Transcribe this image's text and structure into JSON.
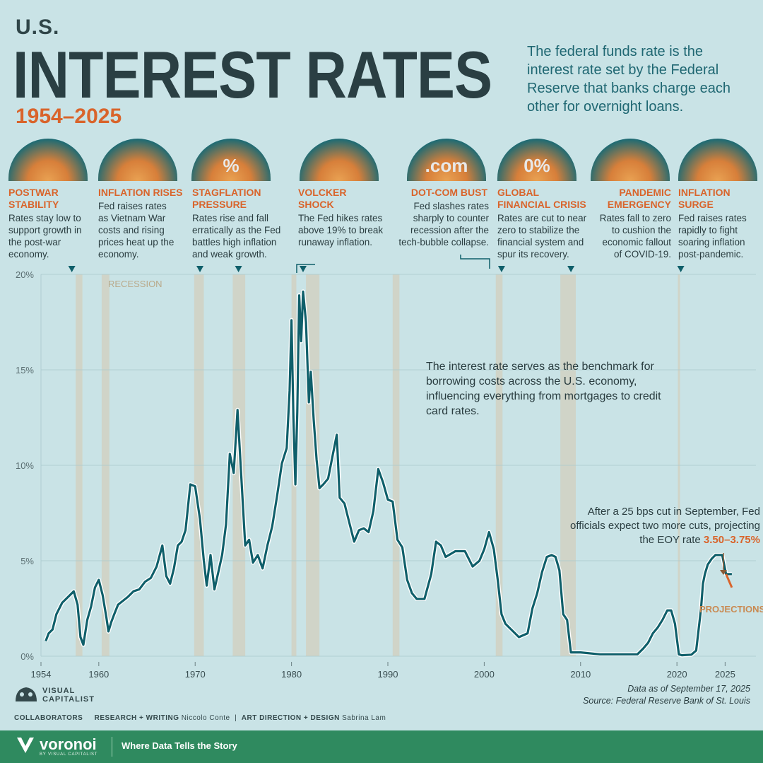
{
  "header": {
    "superscript": "U.S.",
    "title": "INTEREST RATES",
    "years": "1954–2025",
    "intro": "The federal funds rate is the interest rate set by the Federal Reserve that banks charge each other for overnight loans."
  },
  "events": [
    {
      "title": "POSTWAR\nSTABILITY",
      "desc": "Rates stay low to support growth in the post-war economy.",
      "icon": "stacked-coins-icon",
      "icon_glyph": ""
    },
    {
      "title": "INFLATION RISES",
      "desc": "Fed raises rates as Vietnam War costs and rising prices heat up the economy.",
      "icon": "tank-icon",
      "icon_glyph": ""
    },
    {
      "title": "STAGFLATION\nPRESSURE",
      "desc": "Rates rise and fall erratically as the Fed battles high inflation and weak growth.",
      "icon": "percent-dice-icon",
      "icon_glyph": "%"
    },
    {
      "title": "VOLCKER\nSHOCK",
      "desc": "The Fed hikes rates above 19% to break runaway inflation.",
      "icon": "portrait-icon",
      "icon_glyph": ""
    },
    {
      "title": "DOT-COM BUST",
      "desc": "Fed slashes rates sharply to counter recession after the tech-bubble collapse.",
      "icon": "dotcom-ball-icon",
      "icon_glyph": ".com"
    },
    {
      "title": "GLOBAL\nFINANCIAL CRISIS",
      "desc": "Rates are cut to near zero to stabilize the financial system and spur its recovery.",
      "icon": "zero-percent-blocks-icon",
      "icon_glyph": "0%"
    },
    {
      "title": "PANDEMIC\nEMERGENCY",
      "desc": "Rates fall to zero to cushion the economic fallout of COVID-19.",
      "icon": "masked-franklin-icon",
      "icon_glyph": ""
    },
    {
      "title": "INFLATION\nSURGE",
      "desc": "Fed raises rates rapidly to fight soaring inflation post-pandemic.",
      "icon": "rising-coins-icon",
      "icon_glyph": ""
    }
  ],
  "annotations": {
    "benchmark": "The interest rate serves as the benchmark for borrowing costs across the U.S. economy, influencing everything from mortgages to credit card rates.",
    "projection_text": "After a 25 bps cut in September, Fed officials expect two more cuts, projecting the EOY rate",
    "projection_value": "3.50–3.75%",
    "projections_label": "PROJECTIONS",
    "recession_label": "RECESSION"
  },
  "footer": {
    "logo_line1": "VISUAL",
    "logo_line2": "CAPITALIST",
    "data_as_of": "Data as of September 17, 2025",
    "source": "Source: Federal Reserve Bank of St. Louis",
    "collaborators_label": "COLLABORATORS",
    "research_label": "RESEARCH + WRITING",
    "research_name": "Niccolo Conte",
    "design_label": "ART DIRECTION + DESIGN",
    "design_name": "Sabrina Lam",
    "brand": "voronoi",
    "brand_sub": "BY VISUAL CAPITALIST",
    "tagline": "Where Data Tells the Story"
  },
  "colors": {
    "background": "#c9e3e6",
    "line": "#0f5f6a",
    "accent": "#d9642b",
    "recession": "#d2cfbe",
    "footer": "#2f8a5f"
  },
  "chart_data": {
    "type": "line",
    "title": "",
    "xlabel": "",
    "ylabel": "",
    "xlim": [
      1954,
      2026
    ],
    "ylim": [
      0,
      20
    ],
    "yticks": [
      "0%",
      "5%",
      "10%",
      "15%",
      "20%"
    ],
    "ytick_values": [
      0,
      5,
      10,
      15,
      20
    ],
    "xticks": [
      "1954",
      "1960",
      "1970",
      "1980",
      "1990",
      "2000",
      "2010",
      "2020",
      "2025"
    ],
    "xtick_values": [
      1954,
      1960,
      1970,
      1980,
      1990,
      2000,
      2010,
      2020,
      2025
    ],
    "grid": true,
    "series": [
      {
        "name": "",
        "x": [
          1954.5,
          1954.8,
          1955.2,
          1955.6,
          1956.2,
          1956.8,
          1957.4,
          1957.8,
          1958.1,
          1958.4,
          1958.8,
          1959.2,
          1959.6,
          1960.0,
          1960.4,
          1960.8,
          1961.0,
          1961.3,
          1961.6,
          1962.0,
          1962.5,
          1963.0,
          1963.6,
          1964.2,
          1964.8,
          1965.4,
          1966.0,
          1966.6,
          1967.0,
          1967.4,
          1967.8,
          1968.2,
          1968.6,
          1969.0,
          1969.5,
          1970.0,
          1970.5,
          1970.9,
          1971.2,
          1971.6,
          1972.0,
          1972.4,
          1972.8,
          1973.2,
          1973.6,
          1974.0,
          1974.4,
          1974.8,
          1975.2,
          1975.6,
          1976.0,
          1976.5,
          1977.0,
          1977.5,
          1978.0,
          1978.5,
          1979.0,
          1979.5,
          1979.8,
          1980.0,
          1980.2,
          1980.4,
          1980.6,
          1980.8,
          1981.0,
          1981.2,
          1981.5,
          1981.8,
          1982.0,
          1982.3,
          1982.6,
          1982.9,
          1983.3,
          1983.8,
          1984.3,
          1984.7,
          1985.0,
          1985.5,
          1986.0,
          1986.5,
          1987.0,
          1987.5,
          1988.0,
          1988.5,
          1989.0,
          1989.5,
          1990.0,
          1990.5,
          1991.0,
          1991.5,
          1992.0,
          1992.5,
          1993.0,
          1993.8,
          1994.5,
          1995.0,
          1995.5,
          1996.0,
          1997.0,
          1998.0,
          1998.8,
          1999.5,
          2000.0,
          2000.5,
          2001.0,
          2001.4,
          2001.8,
          2002.2,
          2003.0,
          2003.6,
          2004.5,
          2005.0,
          2005.5,
          2006.0,
          2006.5,
          2007.0,
          2007.4,
          2007.8,
          2008.2,
          2008.6,
          2009.0,
          2010.0,
          2012.0,
          2014.0,
          2015.9,
          2016.5,
          2017.0,
          2017.5,
          2018.0,
          2018.5,
          2019.0,
          2019.4,
          2019.8,
          2020.2,
          2020.5,
          2021.5,
          2022.0,
          2022.3,
          2022.5,
          2022.7,
          2022.9,
          2023.2,
          2023.6,
          2024.0,
          2024.5,
          2024.7,
          2024.9,
          2025.1,
          2025.7
        ],
        "values": [
          0.8,
          1.2,
          1.4,
          2.2,
          2.8,
          3.1,
          3.4,
          2.7,
          1.0,
          0.6,
          1.9,
          2.6,
          3.6,
          4.0,
          3.2,
          2.0,
          1.3,
          1.8,
          2.2,
          2.7,
          2.9,
          3.1,
          3.4,
          3.5,
          3.9,
          4.1,
          4.7,
          5.8,
          4.2,
          3.8,
          4.6,
          5.8,
          6.0,
          6.6,
          9.0,
          8.9,
          7.2,
          5.0,
          3.7,
          5.3,
          3.5,
          4.4,
          5.3,
          6.9,
          10.6,
          9.6,
          12.9,
          9.3,
          5.8,
          6.1,
          4.9,
          5.3,
          4.6,
          5.8,
          6.8,
          8.4,
          10.1,
          10.9,
          13.9,
          17.6,
          12.5,
          9.0,
          12.8,
          18.9,
          16.5,
          19.1,
          17.5,
          13.3,
          14.9,
          12.4,
          10.3,
          8.8,
          9.0,
          9.3,
          10.6,
          11.6,
          8.3,
          8.0,
          7.0,
          6.0,
          6.6,
          6.7,
          6.5,
          7.6,
          9.8,
          9.1,
          8.2,
          8.1,
          6.1,
          5.7,
          4.0,
          3.3,
          3.0,
          3.0,
          4.3,
          6.0,
          5.8,
          5.2,
          5.5,
          5.5,
          4.7,
          5.0,
          5.6,
          6.5,
          5.6,
          4.0,
          2.2,
          1.7,
          1.3,
          1.0,
          1.2,
          2.5,
          3.3,
          4.4,
          5.2,
          5.3,
          5.2,
          4.5,
          2.2,
          1.9,
          0.2,
          0.2,
          0.1,
          0.1,
          0.1,
          0.4,
          0.7,
          1.2,
          1.5,
          1.9,
          2.4,
          2.4,
          1.7,
          0.1,
          0.05,
          0.08,
          0.3,
          1.6,
          2.5,
          3.8,
          4.3,
          4.8,
          5.1,
          5.3,
          5.3,
          5.3,
          4.8,
          4.3,
          4.3
        ],
        "projection_x": [
          2025.1,
          2025.7
        ],
        "projection_values": [
          4.3,
          3.6
        ]
      }
    ],
    "recessions": [
      [
        1957.6,
        1958.3
      ],
      [
        1960.3,
        1961.1
      ],
      [
        1969.9,
        1970.9
      ],
      [
        1973.9,
        1975.2
      ],
      [
        1980.0,
        1980.5
      ],
      [
        1981.5,
        1982.9
      ],
      [
        1990.5,
        1991.2
      ],
      [
        2001.2,
        2001.9
      ],
      [
        2007.9,
        2009.5
      ],
      [
        2020.1,
        2020.3
      ]
    ],
    "event_years": [
      1957.2,
      1970.5,
      1974.5,
      1981.2,
      2001.8,
      2009.0,
      2020.4
    ]
  }
}
